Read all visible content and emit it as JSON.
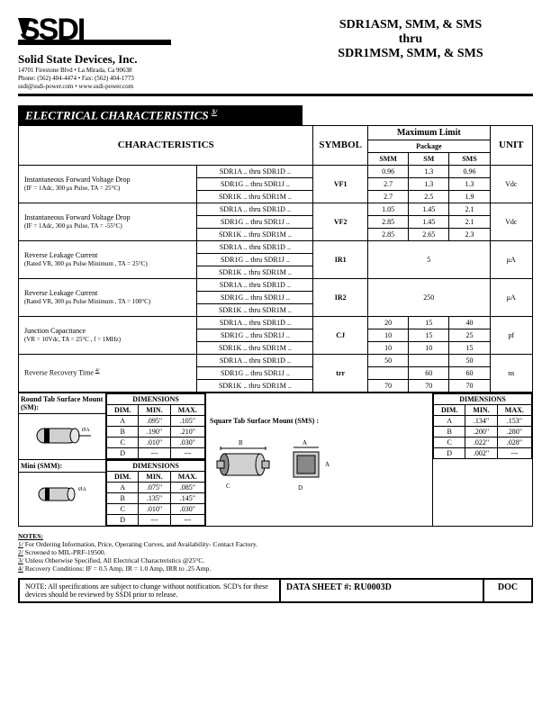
{
  "company": {
    "name": "Solid State Devices, Inc.",
    "addr1": "14701 Firestone Blvd • La Mirada, Ca 90638",
    "addr2": "Phone: (562) 404-4474 • Fax: (562) 404-1773",
    "addr3": "ssdi@ssdi-power.com • www.ssdi-power.com"
  },
  "title": {
    "l1": "SDR1ASM, SMM, & SMS",
    "l2": "thru",
    "l3": "SDR1MSM, SMM, & SMS"
  },
  "section_title": "ELECTRICAL CHARACTERISTICS",
  "section_note_ref": "3/",
  "headers": {
    "characteristics": "CHARACTERISTICS",
    "symbol": "SYMBOL",
    "max_limit": "Maximum Limit",
    "package": "Package",
    "smm": "SMM",
    "sm": "SM",
    "sms": "SMS",
    "unit": "UNIT"
  },
  "rows": [
    {
      "desc": "Instantaneous Forward Voltage Drop",
      "cond": "(IF = 1Adc, 300 μs Pulse, TA = 25°C)",
      "symbol": "VF1",
      "unit": "Vdc",
      "lines": [
        {
          "range": "SDR1A .. thru SDR1D ..",
          "smm": "0.96",
          "sm": "1.3",
          "sms": "0.96"
        },
        {
          "range": "SDR1G .. thru SDR1J ..",
          "smm": "2.7",
          "sm": "1.3",
          "sms": "1.3"
        },
        {
          "range": "SDR1K .. thru SDR1M ..",
          "smm": "2.7",
          "sm": "2.5",
          "sms": "1.9"
        }
      ]
    },
    {
      "desc": "Instantaneous Forward Voltage Drop",
      "cond": "(IF = 1Adc, 300 μs Pulse, TA = -55°C)",
      "symbol": "VF2",
      "unit": "Vdc",
      "lines": [
        {
          "range": "SDR1A .. thru SDR1D ..",
          "smm": "1.05",
          "sm": "1.45",
          "sms": "2.1"
        },
        {
          "range": "SDR1G .. thru SDR1J ..",
          "smm": "2.85",
          "sm": "1.45",
          "sms": "2.1"
        },
        {
          "range": "SDR1K .. thru SDR1M ..",
          "smm": "2.85",
          "sm": "2.65",
          "sms": "2.3"
        }
      ]
    },
    {
      "desc": "Reverse Leakage Current",
      "cond": "(Rated VR, 300 μs Pulse Minimum , TA = 25°C)",
      "symbol": "IR1",
      "unit": "μA",
      "merged_value": "5",
      "lines": [
        {
          "range": "SDR1A .. thru SDR1D .."
        },
        {
          "range": "SDR1G .. thru SDR1J .."
        },
        {
          "range": "SDR1K .. thru SDR1M .."
        }
      ]
    },
    {
      "desc": "Reverse Leakage Current",
      "cond": "(Rated VR, 300 μs Pulse Minimum , TA = 100°C)",
      "symbol": "IR2",
      "unit": "μA",
      "merged_value": "250",
      "lines": [
        {
          "range": "SDR1A .. thru SDR1D .."
        },
        {
          "range": "SDR1G .. thru SDR1J .."
        },
        {
          "range": "SDR1K .. thru SDR1M .."
        }
      ]
    },
    {
      "desc": "Junction Capacitance",
      "cond": "(VR = 10Vdc, TA = 25°C , f = 1MHz)",
      "symbol": "CJ",
      "unit": "pf",
      "lines": [
        {
          "range": "SDR1A .. thru SDR1D ..",
          "smm": "20",
          "sm": "15",
          "sms": "40"
        },
        {
          "range": "SDR1G .. thru SDR1J ..",
          "smm": "10",
          "sm": "15",
          "sms": "25"
        },
        {
          "range": "SDR1K .. thru SDR1M ..",
          "smm": "10",
          "sm": "10",
          "sms": "15"
        }
      ]
    },
    {
      "desc": "Reverse Recovery Time",
      "desc_ref": "4/",
      "cond": "",
      "symbol": "trr",
      "unit": "ns",
      "lines": [
        {
          "range": "SDR1A .. thru SDR1D ..",
          "smm": "50",
          "sm": "",
          "sms": "50"
        },
        {
          "range": "SDR1G .. thru SDR1J ..",
          "smm": "",
          "sm": "60",
          "sms": "60"
        },
        {
          "range": "SDR1K .. thru SDR1M ..",
          "smm": "70",
          "sm": "70",
          "sms": "70"
        }
      ]
    }
  ],
  "packages": {
    "sm": {
      "label": "Round Tab Surface Mount (SM):",
      "dim_header": "DIMENSIONS",
      "cols": [
        "DIM.",
        "MIN.",
        "MAX."
      ],
      "rows": [
        [
          "A",
          ".095\"",
          ".105\""
        ],
        [
          "B",
          ".190\"",
          ".210\""
        ],
        [
          "C",
          ".010\"",
          ".030\""
        ],
        [
          "D",
          "---",
          "---"
        ]
      ]
    },
    "smm": {
      "label": "Mini (SMM):",
      "dim_header": "DIMENSIONS",
      "cols": [
        "DIM.",
        "MIN.",
        "MAX."
      ],
      "rows": [
        [
          "A",
          ".075\"",
          ".085\""
        ],
        [
          "B",
          ".135\"",
          ".145\""
        ],
        [
          "C",
          ".010\"",
          ".030\""
        ],
        [
          "D",
          "---",
          "---"
        ]
      ]
    },
    "sms": {
      "label": "Square Tab Surface Mount (SMS) :",
      "dim_header": "DIMENSIONS",
      "cols": [
        "DIM.",
        "MIN.",
        "MAX."
      ],
      "rows": [
        [
          "A",
          ".134\"",
          ".153\""
        ],
        [
          "B",
          ".200\"",
          ".280\""
        ],
        [
          "C",
          ".022\"",
          ".028\""
        ],
        [
          "D",
          ".002\"",
          "---"
        ]
      ]
    }
  },
  "notes": {
    "header": "NOTES:",
    "items": [
      "1/   For Ordering Information, Price, Operating Curves, and Availability- Contact Factory.",
      "2/   Screened to MIL-PRF-19500.",
      "3/   Unless Otherwise Specified, All Electrical Characteristics @25°C.",
      "4/   Recovery Conditions:  IF = 0.5 Amp, IR = 1.0 Amp, IRR to .25 Amp."
    ]
  },
  "footer": {
    "note": "NOTE:  All specifications are subject to change without notification. SCD's for these devices should be reviewed by SSDI prior to release.",
    "ds_label": "DATA SHEET #: RU0003D",
    "doc": "DOC"
  }
}
